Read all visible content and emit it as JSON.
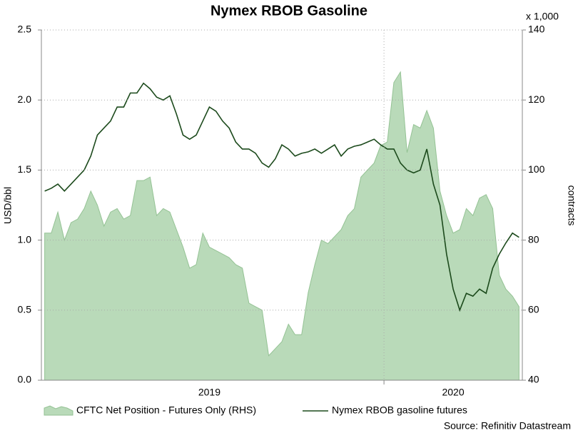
{
  "chart_data": {
    "type": "area-line",
    "title": "Nymex RBOB Gasoline",
    "y_label": "USD/bbl",
    "y2_label": "contracts",
    "y2_unit": "x 1,000",
    "source": "Source: Refinitiv Datastream",
    "categories": [
      null,
      null,
      null,
      null,
      null,
      null,
      null,
      null,
      null,
      null,
      null,
      null,
      null,
      null,
      null,
      null,
      null,
      null,
      null,
      null,
      null,
      null,
      null,
      null,
      null,
      "2019",
      null,
      null,
      null,
      null,
      null,
      null,
      null,
      null,
      null,
      null,
      null,
      null,
      null,
      null,
      null,
      null,
      null,
      null,
      null,
      null,
      null,
      null,
      null,
      null,
      null,
      null,
      null,
      null,
      null,
      null,
      null,
      null,
      null,
      null,
      null,
      null,
      "2020",
      null,
      null,
      null,
      null,
      null,
      null,
      null,
      null,
      null,
      null
    ],
    "series": [
      {
        "name": "CFTC Net Position - Futures Only (RHS)",
        "color": "#b9dab9",
        "axis": "y2",
        "kind": "area",
        "values": [
          82,
          82,
          88,
          80,
          85,
          86,
          89,
          94,
          90,
          84,
          88,
          89,
          86,
          87,
          97,
          97,
          98,
          87,
          89,
          88,
          83,
          78,
          72,
          73,
          82,
          78,
          77,
          76,
          75,
          73,
          72,
          62,
          61,
          60,
          47,
          49,
          51,
          56,
          53,
          53,
          65,
          73,
          80,
          79,
          81,
          83,
          87,
          89,
          98,
          100,
          102,
          107,
          108,
          125,
          128,
          105,
          113,
          112,
          117,
          112,
          94,
          87,
          82,
          83,
          89,
          87,
          92,
          93,
          89,
          70,
          66,
          64,
          61
        ]
      },
      {
        "name": "Nymex RBOB gasoline futures",
        "color": "#1c4a1c",
        "kind": "line",
        "values": [
          1.35,
          1.37,
          1.4,
          1.35,
          1.4,
          1.45,
          1.5,
          1.6,
          1.75,
          1.8,
          1.85,
          1.95,
          1.95,
          2.05,
          2.05,
          2.12,
          2.08,
          2.02,
          2.0,
          2.03,
          1.9,
          1.75,
          1.72,
          1.75,
          1.85,
          1.95,
          1.92,
          1.85,
          1.8,
          1.7,
          1.65,
          1.65,
          1.62,
          1.55,
          1.52,
          1.58,
          1.68,
          1.65,
          1.6,
          1.62,
          1.63,
          1.65,
          1.62,
          1.65,
          1.68,
          1.6,
          1.65,
          1.67,
          1.68,
          1.7,
          1.72,
          1.68,
          1.65,
          1.65,
          1.55,
          1.5,
          1.48,
          1.5,
          1.65,
          1.4,
          1.25,
          0.9,
          0.65,
          0.5,
          0.62,
          0.6,
          0.65,
          0.62,
          0.8,
          0.9,
          0.98,
          1.05,
          1.02
        ]
      }
    ],
    "ylim": [
      0,
      2.5
    ],
    "yticks": [
      {
        "value": 0,
        "label": "0.0"
      },
      0.5,
      {
        "value": 1,
        "label": "1.0"
      },
      1.5,
      {
        "value": 2,
        "label": "2.0"
      },
      2.5
    ],
    "y2lim": [
      40,
      140
    ],
    "y2ticks": [
      40,
      60,
      80,
      100,
      120,
      140
    ],
    "grid": true
  }
}
